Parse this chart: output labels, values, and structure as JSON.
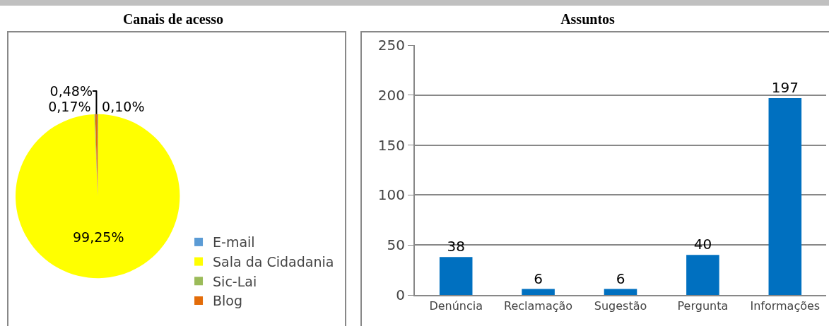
{
  "chart_data": [
    {
      "type": "pie",
      "title": "Canais de acesso",
      "categories": [
        "E-mail",
        "Sala da Cidadania",
        "Sic-Lai",
        "Blog"
      ],
      "values": [
        0.1,
        99.25,
        0.17,
        0.48
      ],
      "colors": [
        "#5b9bd5",
        "#ffff00",
        "#9bbb59",
        "#e36c09"
      ],
      "value_labels": [
        "0,10%",
        "99,25%",
        "0,17%",
        "0,48%"
      ],
      "legend": "bottom right"
    },
    {
      "type": "bar",
      "title": "Assuntos",
      "categories": [
        "Denúncia",
        "Reclamação",
        "Sugestão",
        "Pergunta",
        "Informações"
      ],
      "values": [
        38,
        6,
        6,
        40,
        197
      ],
      "color": "#0070c0",
      "ylim": [
        0,
        250
      ],
      "yticks": [
        0,
        50,
        100,
        150,
        200,
        250
      ],
      "grid": "y",
      "data_labels": true,
      "legend": false
    }
  ]
}
